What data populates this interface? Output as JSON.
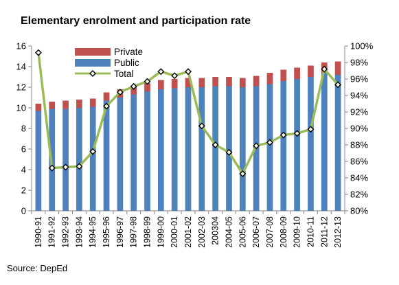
{
  "title": "Elementary enrolment and participation rate",
  "source": "Source: DepEd",
  "colors": {
    "private": "#C0504D",
    "public": "#4F81BD",
    "total": "#9BBB59",
    "marker": "#000000"
  },
  "chart_data": {
    "type": "bar",
    "stacked": true,
    "title": "Elementary enrolment and participation rate",
    "categories": [
      "1990-91",
      "1991-92",
      "1992-93",
      "1993-94",
      "1994-95",
      "1995-96",
      "1996-97",
      "1997-98",
      "1998-99",
      "1999-00",
      "2000-01",
      "2001-02",
      "2002-03",
      "200304",
      "2004-05",
      "2005-06",
      "2006-07",
      "2007-08",
      "2008-09",
      "2009-10",
      "2010-11",
      "2011-12",
      "2012-13"
    ],
    "series": [
      {
        "name": "Public",
        "type": "bar",
        "axis": "left",
        "color": "#4F81BD",
        "values": [
          9.7,
          9.9,
          9.9,
          10.0,
          10.1,
          10.7,
          11.0,
          11.3,
          11.6,
          11.8,
          11.9,
          12.0,
          12.0,
          12.1,
          12.1,
          12.0,
          12.1,
          12.3,
          12.6,
          12.8,
          13.0,
          13.4,
          13.2
        ]
      },
      {
        "name": "Private",
        "type": "bar",
        "axis": "left",
        "color": "#C0504D",
        "values": [
          0.7,
          0.7,
          0.8,
          0.8,
          0.8,
          0.8,
          0.8,
          0.8,
          0.8,
          0.9,
          0.9,
          0.9,
          0.9,
          0.9,
          0.9,
          0.9,
          1.0,
          1.1,
          1.1,
          1.1,
          1.1,
          1.0,
          1.3
        ]
      },
      {
        "name": "Total",
        "type": "line",
        "axis": "right",
        "color": "#9BBB59",
        "values": [
          99.2,
          85.2,
          85.3,
          85.4,
          87.2,
          92.7,
          94.4,
          95.1,
          95.7,
          96.9,
          96.4,
          96.9,
          90.3,
          88.0,
          87.1,
          84.5,
          87.9,
          88.3,
          89.2,
          89.4,
          89.9,
          97.2,
          95.3
        ]
      }
    ],
    "y_left": {
      "range": [
        0,
        16
      ],
      "ticks": [
        "0",
        "2",
        "4",
        "6",
        "8",
        "10",
        "12",
        "14",
        "16"
      ]
    },
    "y_right": {
      "range": [
        80,
        100
      ],
      "ticks": [
        "80%",
        "82%",
        "84%",
        "86%",
        "88%",
        "90%",
        "92%",
        "94%",
        "96%",
        "98%",
        "100%"
      ]
    },
    "legend": {
      "placement": "top-left",
      "entries": [
        "Private",
        "Public",
        "Total"
      ]
    },
    "grid": false
  }
}
